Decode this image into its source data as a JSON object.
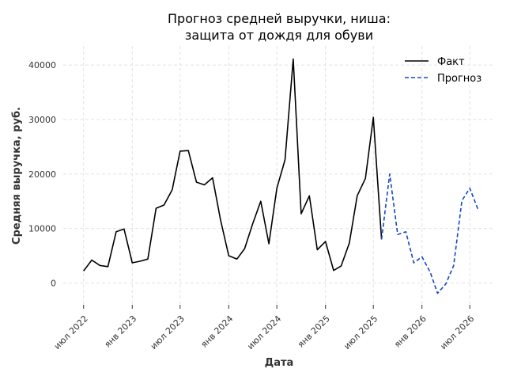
{
  "chart_data": {
    "type": "line",
    "title_lines": [
      "Прогноз средней выручки, ниша:",
      "защита от дождя для обуви"
    ],
    "xlabel": "Дата",
    "ylabel": "Средняя выручка, руб.",
    "x_ticks": [
      {
        "date": "2022-07",
        "label": "июл 2022"
      },
      {
        "date": "2023-01",
        "label": "янв 2023"
      },
      {
        "date": "2023-07",
        "label": "июл 2023"
      },
      {
        "date": "2024-01",
        "label": "янв 2024"
      },
      {
        "date": "2024-07",
        "label": "июл 2024"
      },
      {
        "date": "2025-01",
        "label": "янв 2025"
      },
      {
        "date": "2025-07",
        "label": "июл 2025"
      },
      {
        "date": "2026-01",
        "label": "янв 2026"
      },
      {
        "date": "2026-07",
        "label": "июл 2026"
      }
    ],
    "y_ticks": [
      0,
      10000,
      20000,
      30000,
      40000
    ],
    "xlim": [
      "2022-04-15",
      "2026-10-01"
    ],
    "ylim": [
      -4000,
      43500
    ],
    "grid": true,
    "legend_position": "top-right",
    "series": [
      {
        "name": "Факт",
        "color": "#000000",
        "style": "solid",
        "points": [
          {
            "x": "2022-07",
            "y": 2200
          },
          {
            "x": "2022-08",
            "y": 4200
          },
          {
            "x": "2022-09",
            "y": 3200
          },
          {
            "x": "2022-10",
            "y": 3000
          },
          {
            "x": "2022-11",
            "y": 9400
          },
          {
            "x": "2022-12",
            "y": 9900
          },
          {
            "x": "2023-01",
            "y": 3700
          },
          {
            "x": "2023-02",
            "y": 4000
          },
          {
            "x": "2023-03",
            "y": 4400
          },
          {
            "x": "2023-04",
            "y": 13700
          },
          {
            "x": "2023-05",
            "y": 14300
          },
          {
            "x": "2023-06",
            "y": 17100
          },
          {
            "x": "2023-07",
            "y": 24200
          },
          {
            "x": "2023-08",
            "y": 24300
          },
          {
            "x": "2023-09",
            "y": 18500
          },
          {
            "x": "2023-10",
            "y": 18000
          },
          {
            "x": "2023-11",
            "y": 19300
          },
          {
            "x": "2023-12",
            "y": 11600
          },
          {
            "x": "2024-01",
            "y": 5000
          },
          {
            "x": "2024-02",
            "y": 4400
          },
          {
            "x": "2024-03",
            "y": 6300
          },
          {
            "x": "2024-04",
            "y": 10900
          },
          {
            "x": "2024-05",
            "y": 15000
          },
          {
            "x": "2024-06",
            "y": 7200
          },
          {
            "x": "2024-07",
            "y": 17400
          },
          {
            "x": "2024-08",
            "y": 22600
          },
          {
            "x": "2024-09",
            "y": 41100
          },
          {
            "x": "2024-10",
            "y": 12700
          },
          {
            "x": "2024-11",
            "y": 16000
          },
          {
            "x": "2024-12",
            "y": 6100
          },
          {
            "x": "2025-01",
            "y": 7600
          },
          {
            "x": "2025-02",
            "y": 2300
          },
          {
            "x": "2025-03",
            "y": 3100
          },
          {
            "x": "2025-04",
            "y": 7300
          },
          {
            "x": "2025-05",
            "y": 16000
          },
          {
            "x": "2025-06",
            "y": 19200
          },
          {
            "x": "2025-07",
            "y": 30400
          },
          {
            "x": "2025-08",
            "y": 8000
          }
        ]
      },
      {
        "name": "Прогноз",
        "color": "#1446c8",
        "style": "dashed",
        "points": [
          {
            "x": "2025-08",
            "y": 8000
          },
          {
            "x": "2025-09",
            "y": 20000
          },
          {
            "x": "2025-10",
            "y": 8900
          },
          {
            "x": "2025-11",
            "y": 9400
          },
          {
            "x": "2025-12",
            "y": 3700
          },
          {
            "x": "2026-01",
            "y": 4800
          },
          {
            "x": "2026-02",
            "y": 2000
          },
          {
            "x": "2026-03",
            "y": -1900
          },
          {
            "x": "2026-04",
            "y": -200
          },
          {
            "x": "2026-05",
            "y": 3200
          },
          {
            "x": "2026-06",
            "y": 15100
          },
          {
            "x": "2026-07",
            "y": 17400
          },
          {
            "x": "2026-08",
            "y": 13500
          }
        ]
      }
    ]
  }
}
